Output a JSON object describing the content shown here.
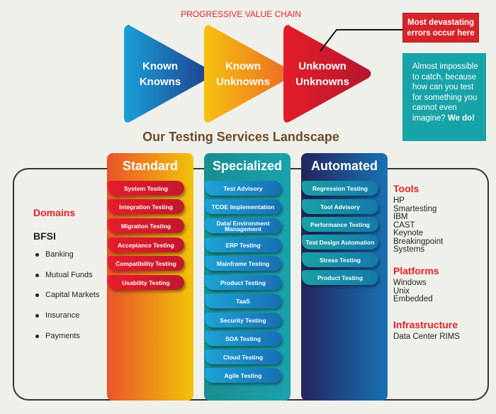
{
  "chain": {
    "title": "PROGRESSIVE VALUE CHAIN",
    "stages": [
      {
        "line1": "Known",
        "line2": "Knowns"
      },
      {
        "line1": "Known",
        "line2": "Unknowns"
      },
      {
        "line1": "Unknown",
        "line2": "Unknowns"
      }
    ]
  },
  "callout_red": "Most devastating errors occur here",
  "callout_teal": {
    "text": "Almost impossible to catch, because how can you test for something you cannot even imagine?",
    "emphasis": "We do!"
  },
  "landscape_title": "Our Testing Services Landscape",
  "columns": [
    {
      "title": "Standard",
      "items": [
        "System Testing",
        "Integration Testing",
        "Migration Testing",
        "Acceptance Testing",
        "Compatibility Testing",
        "Usability Testing"
      ]
    },
    {
      "title": "Specialized",
      "items": [
        "Test Advisory",
        "TCOE Implementation",
        "Data/ Environment Management",
        "ERP Testing",
        "Mainframe Testing",
        "Product Testing",
        "TaaS",
        "Security Testing",
        "SOA Testing",
        "Cloud Testing",
        "Agile Testing"
      ]
    },
    {
      "title": "Automated",
      "items": [
        "Regression Testing",
        "Tool Advisory",
        "Performance Testing",
        "Test Design Automation",
        "Stress Testing",
        "Product Testing"
      ]
    }
  ],
  "domains": {
    "title": "Domains",
    "sub": "BFSI",
    "items": [
      "Banking",
      "Mutual Funds",
      "Capital Markets",
      "Insurance",
      "Payments"
    ]
  },
  "tools": {
    "title": "Tools",
    "items": [
      "HP",
      "Smartesting",
      "IBM",
      "CAST",
      "Keynote",
      "Breakingpoint",
      "Systems"
    ]
  },
  "platforms": {
    "title": "Platforms",
    "items": [
      "Windows",
      "Unix",
      "Embedded"
    ]
  },
  "infrastructure": {
    "title": "Infrastructure",
    "items": [
      "Data Center RIMS"
    ]
  }
}
